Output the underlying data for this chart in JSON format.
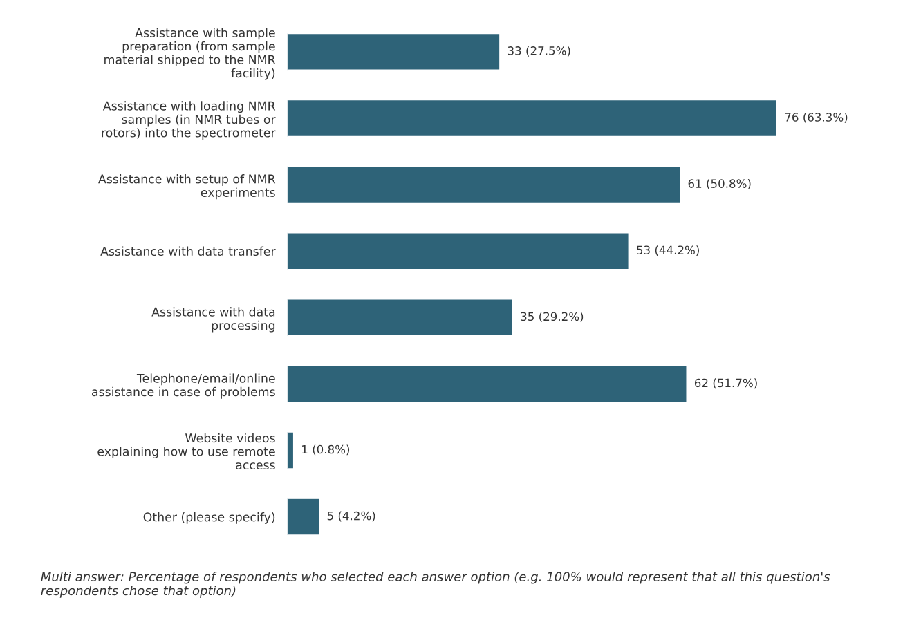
{
  "chart_data": {
    "type": "bar",
    "orientation": "horizontal",
    "categories": [
      "Assistance with sample\npreparation (from sample\nmaterial shipped to the NMR\nfacility)",
      "Assistance with loading NMR\nsamples (in NMR tubes or\nrotors) into the spectrometer",
      "Assistance with setup of NMR\nexperiments",
      "Assistance with data transfer",
      "Assistance with data\nprocessing",
      "Telephone/email/online\nassistance in case of problems",
      "Website videos\nexplaining how to use remote\naccess",
      "Other (please specify)"
    ],
    "values": [
      33,
      76,
      61,
      53,
      35,
      62,
      1,
      5
    ],
    "value_labels": [
      "33 (27.5%)",
      "76 (63.3%)",
      "61 (50.8%)",
      "53 (44.2%)",
      "35 (29.2%)",
      "62 (51.7%)",
      "1 (0.8%)",
      "5 (4.2%)"
    ],
    "color": "#2e6378",
    "annotations": [
      "Multi answer: Percentage of respondents who selected each answer option (e.g. 100% would represent that all this question's respondents chose that option)"
    ]
  }
}
